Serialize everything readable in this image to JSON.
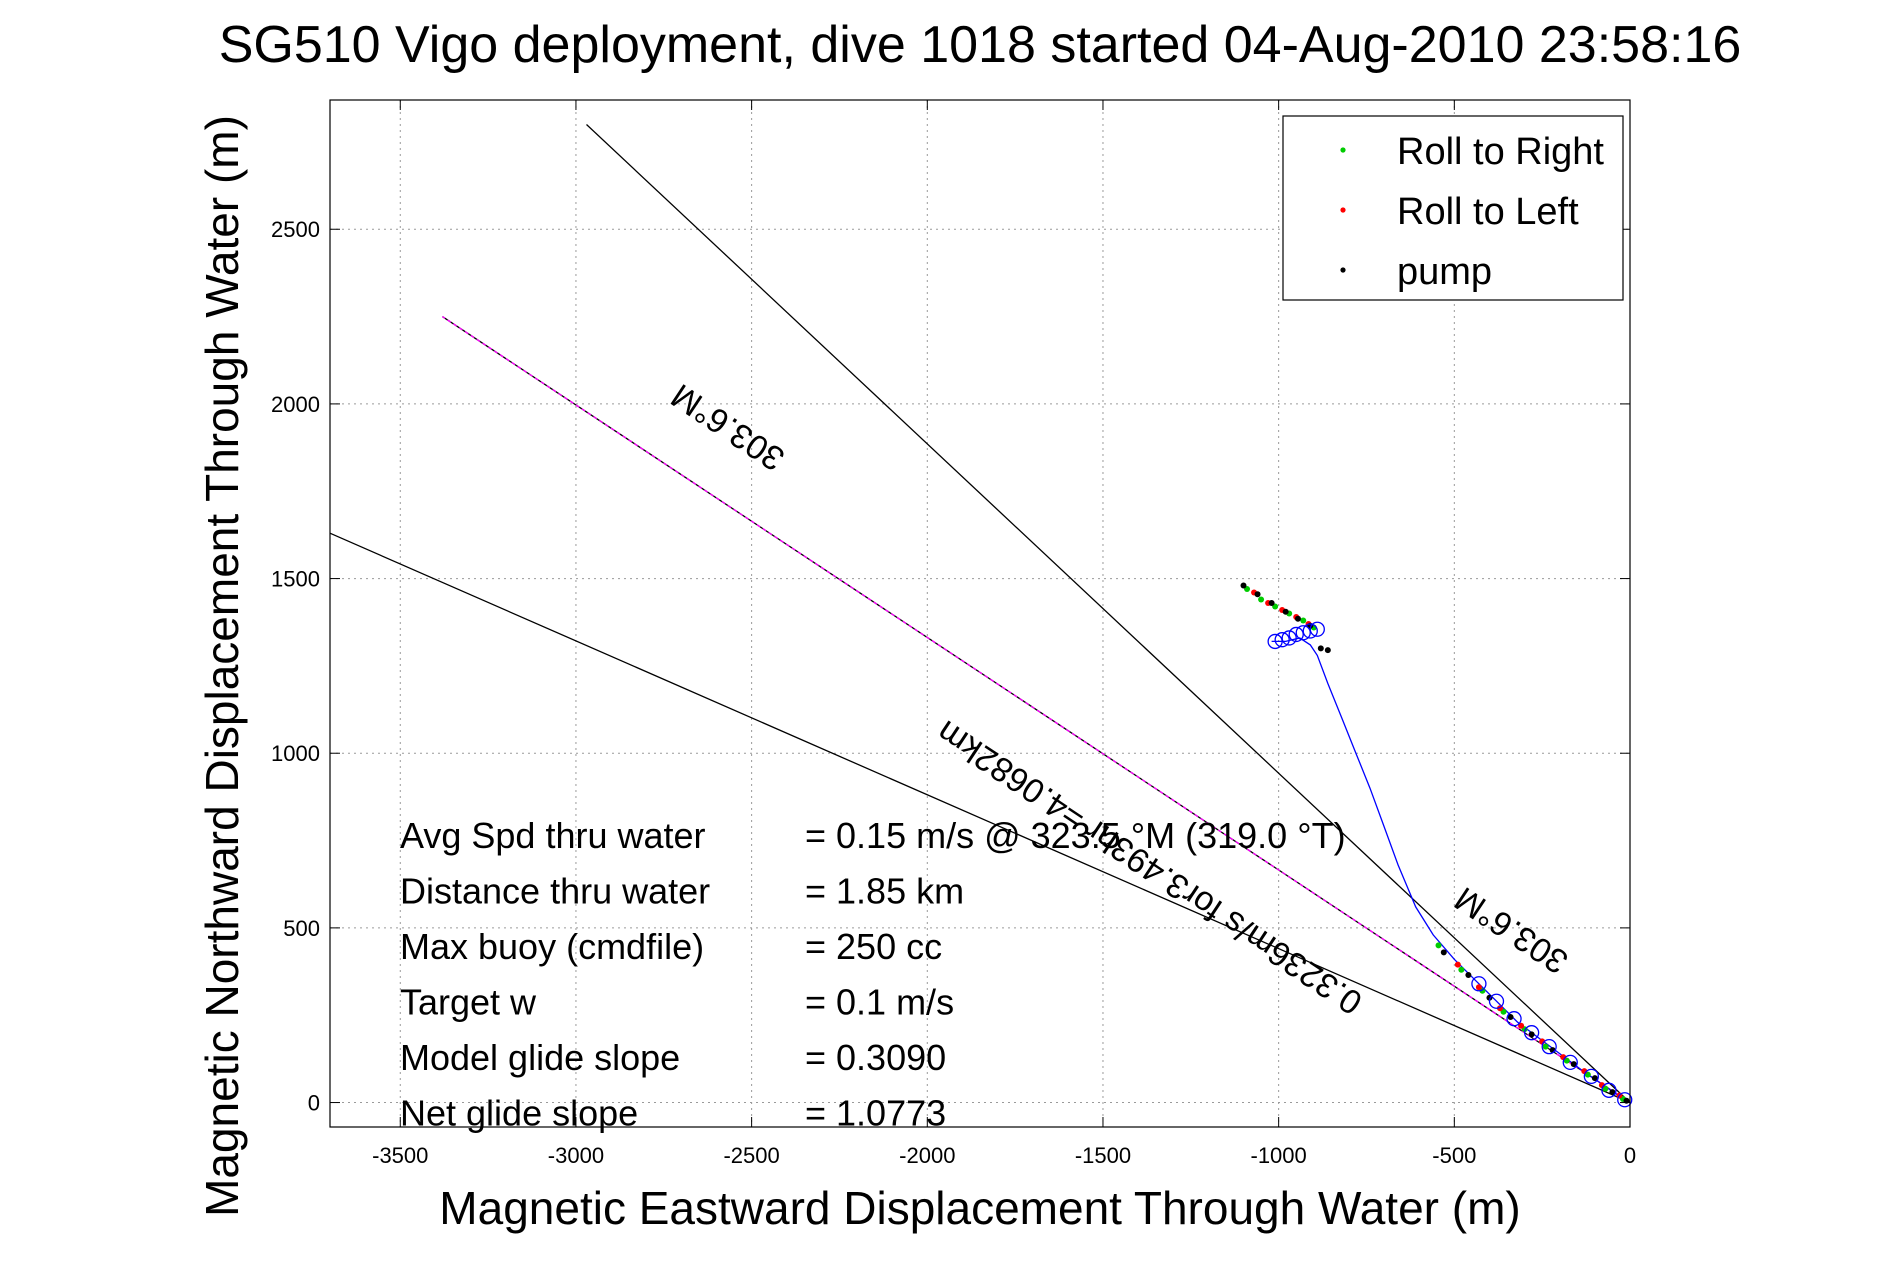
{
  "chart_data": {
    "type": "line",
    "title": "SG510 Vigo deployment, dive 1018 started 04-Aug-2010 23:58:16",
    "xlabel": "Magnetic Eastward Displacement Through Water (m)",
    "ylabel": "Magnetic Northward Displacement Through Water (m)",
    "xlim": [
      -3700,
      0
    ],
    "ylim": [
      -70,
      2870
    ],
    "xticks": [
      -3500,
      -3000,
      -2500,
      -2000,
      -1500,
      -1000,
      -500,
      0
    ],
    "yticks": [
      0,
      500,
      1000,
      1500,
      2000,
      2500
    ],
    "xtick_labels": [
      "-3500",
      "-3000",
      "-2500",
      "-2000",
      "-1500",
      "-1000",
      "-500",
      "0"
    ],
    "ytick_labels": [
      "0",
      "500",
      "1000",
      "1500",
      "2000",
      "2500"
    ],
    "grid": true,
    "legend": {
      "position": "top-right",
      "entries": [
        {
          "label": "Roll to Right",
          "color": "#00cc00",
          "marker": "dot"
        },
        {
          "label": "Roll to Left",
          "color": "#ff0000",
          "marker": "dot"
        },
        {
          "label": "pump",
          "color": "#000000",
          "marker": "dot"
        }
      ]
    },
    "series": [
      {
        "style": "black-line",
        "color": "#000000",
        "x": [
          0,
          -3700
        ],
        "y": [
          0,
          1630
        ]
      },
      {
        "style": "black-line",
        "color": "#000000",
        "x": [
          0,
          -2970
        ],
        "y": [
          0,
          2800
        ]
      },
      {
        "style": "black-line",
        "color": "#000000",
        "x": [
          0,
          -3380
        ],
        "y": [
          0,
          2250
        ]
      },
      {
        "style": "magenta-dashed",
        "color": "#ff00ff",
        "x": [
          0,
          -3380
        ],
        "y": [
          0,
          2250
        ]
      },
      {
        "style": "track",
        "color": "#0000ff",
        "x": [
          0,
          -40,
          -90,
          -140,
          -200,
          -260,
          -320,
          -380,
          -440,
          -500,
          -560,
          -610,
          -660,
          -700,
          -740,
          -780,
          -820,
          -860,
          -890,
          -910,
          -940,
          -980,
          -1020
        ],
        "y": [
          0,
          25,
          60,
          95,
          140,
          185,
          230,
          290,
          350,
          410,
          480,
          560,
          680,
          790,
          900,
          1000,
          1100,
          1200,
          1280,
          1310,
          1330,
          1320,
          1320
        ]
      }
    ],
    "scatter_series": [
      {
        "name": "Roll to Right",
        "color": "#00cc00",
        "x": [
          -20,
          -70,
          -120,
          -180,
          -240,
          -300,
          -360,
          -420,
          -480,
          -545,
          -1090,
          -1050,
          -1010,
          -970,
          -930,
          -900
        ],
        "y": [
          10,
          40,
          80,
          120,
          160,
          210,
          260,
          320,
          380,
          450,
          1470,
          1440,
          1420,
          1400,
          1380,
          1360
        ]
      },
      {
        "name": "Roll to Left",
        "color": "#ff0000",
        "x": [
          -30,
          -80,
          -130,
          -190,
          -250,
          -310,
          -370,
          -430,
          -490,
          -1070,
          -1030,
          -990,
          -950,
          -915
        ],
        "y": [
          20,
          50,
          90,
          130,
          175,
          220,
          270,
          330,
          395,
          1460,
          1430,
          1410,
          1390,
          1370
        ]
      },
      {
        "name": "pump",
        "color": "#000000",
        "x": [
          -10,
          -50,
          -100,
          -160,
          -220,
          -280,
          -340,
          -400,
          -460,
          -530,
          -1100,
          -1060,
          -1020,
          -980,
          -945,
          -910,
          -880,
          -860
        ],
        "y": [
          5,
          30,
          70,
          110,
          150,
          195,
          245,
          300,
          365,
          430,
          1480,
          1455,
          1430,
          1405,
          1385,
          1365,
          1300,
          1295
        ]
      },
      {
        "name": "GPS circles",
        "color": "#0000ff",
        "marker": "circle",
        "x": [
          -15,
          -60,
          -110,
          -170,
          -230,
          -280,
          -330,
          -380,
          -430,
          -1010,
          -990,
          -970,
          -950,
          -930,
          -910,
          -890
        ],
        "y": [
          8,
          35,
          75,
          115,
          160,
          200,
          240,
          290,
          340,
          1320,
          1325,
          1330,
          1340,
          1345,
          1350,
          1355
        ]
      }
    ],
    "annotations": [
      {
        "text": "303.6°M",
        "x": -2550,
        "y": 1960,
        "rotation": 213.6
      },
      {
        "text": "303.6°M",
        "x": -320,
        "y": 520,
        "rotation": 213.6
      },
      {
        "text": "0.3236m/s for3.493hr =4.0682km",
        "x": -1350,
        "y": 700,
        "rotation": 213.6
      }
    ],
    "stats": [
      {
        "label": "Avg Spd thru water",
        "value": "=  0.15 m/s @ 323.5 °M (319.0 °T)"
      },
      {
        "label": "Distance thru water",
        "value": "=  1.85 km"
      },
      {
        "label": "Max buoy (cmdfile)",
        "value": "= 250 cc"
      },
      {
        "label": "Target w",
        "value": "= 0.1 m/s"
      },
      {
        "label": "Model glide slope",
        "value": "= 0.3090"
      },
      {
        "label": "Net glide slope",
        "value": "= 1.0773"
      }
    ]
  }
}
